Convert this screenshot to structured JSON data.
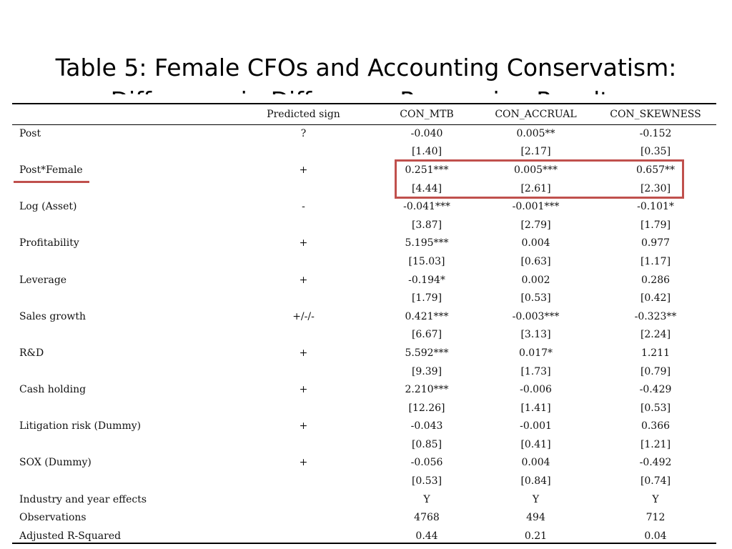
{
  "title": {
    "line1": "Table 5: Female CFOs and Accounting Conservatism:",
    "line2": "Difference-in-Difference Regression Results"
  },
  "table": {
    "headers": [
      "",
      "Predicted sign",
      "CON_MTB",
      "CON_ACCRUAL",
      "CON_SKEWNESS"
    ],
    "rows": [
      [
        "Post",
        "?",
        "-0.040",
        "0.005**",
        "-0.152"
      ],
      [
        "",
        "",
        "[1.40]",
        "[2.17]",
        "[0.35]"
      ],
      [
        "Post*Female",
        "+",
        "0.251***",
        "0.005***",
        "0.657**"
      ],
      [
        "",
        "",
        "[4.44]",
        "[2.61]",
        "[2.30]"
      ],
      [
        "Log (Asset)",
        "-",
        "-0.041***",
        "-0.001***",
        "-0.101*"
      ],
      [
        "",
        "",
        "[3.87]",
        "[2.79]",
        "[1.79]"
      ],
      [
        "Profitability",
        "+",
        "5.195***",
        "0.004",
        "0.977"
      ],
      [
        "",
        "",
        "[15.03]",
        "[0.63]",
        "[1.17]"
      ],
      [
        "Leverage",
        "+",
        "-0.194*",
        "0.002",
        "0.286"
      ],
      [
        "",
        "",
        "[1.79]",
        "[0.53]",
        "[0.42]"
      ],
      [
        "Sales growth",
        "+/-/-",
        "0.421***",
        "-0.003***",
        "-0.323**"
      ],
      [
        "",
        "",
        "[6.67]",
        "[3.13]",
        "[2.24]"
      ],
      [
        "R&D",
        "+",
        "5.592***",
        "0.017*",
        "1.211"
      ],
      [
        "",
        "",
        "[9.39]",
        "[1.73]",
        "[0.79]"
      ],
      [
        "Cash holding",
        "+",
        "2.210***",
        "-0.006",
        "-0.429"
      ],
      [
        "",
        "",
        "[12.26]",
        "[1.41]",
        "[0.53]"
      ],
      [
        "Litigation risk (Dummy)",
        "+",
        "-0.043",
        "-0.001",
        "0.366"
      ],
      [
        "",
        "",
        "[0.85]",
        "[0.41]",
        "[1.21]"
      ],
      [
        "SOX (Dummy)",
        "+",
        "-0.056",
        "0.004",
        "-0.492"
      ],
      [
        "",
        "",
        "[0.53]",
        "[0.84]",
        "[0.74]"
      ],
      [
        "Industry and year effects",
        "",
        "Y",
        "Y",
        "Y"
      ],
      [
        "Observations",
        "",
        "4768",
        "494",
        "712"
      ],
      [
        "Adjusted R-Squared",
        "",
        "0.44",
        "0.21",
        "0.04"
      ]
    ]
  },
  "colors": {
    "highlight": "#c0504d"
  }
}
